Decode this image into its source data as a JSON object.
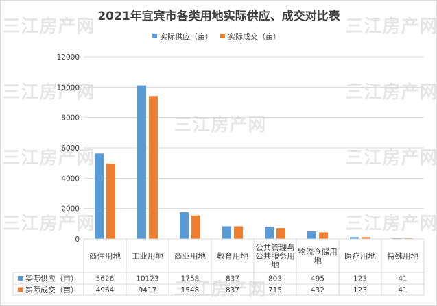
{
  "watermark": "三江房产网",
  "colors": {
    "supply": "#5b9bd5",
    "deal": "#ed7d31",
    "gridline": "#d9d9d9",
    "text": "#404040"
  },
  "chart_data": {
    "type": "bar",
    "title": "2021年宜宾市各类用地实际供应、成交对比表",
    "categories": [
      [
        "商住用地"
      ],
      [
        "工业用地"
      ],
      [
        "商业用地"
      ],
      [
        "教育用地"
      ],
      [
        "公共管理与",
        "公共服务用",
        "地"
      ],
      [
        "物流仓储用",
        "地"
      ],
      [
        "医疗用地"
      ],
      [
        "特殊用地"
      ]
    ],
    "series": [
      {
        "name": "实际供应（亩）",
        "values": [
          5626,
          10123,
          1758,
          837,
          803,
          495,
          123,
          41
        ]
      },
      {
        "name": "实际成交（亩）",
        "values": [
          4964,
          9417,
          1548,
          837,
          715,
          432,
          123,
          41
        ]
      }
    ],
    "ylim": [
      0,
      12000
    ],
    "yticks": [
      "0",
      "2000",
      "4000",
      "6000",
      "8000",
      "10000",
      "12000"
    ],
    "grid": true,
    "legend": "top",
    "data_table": true
  }
}
